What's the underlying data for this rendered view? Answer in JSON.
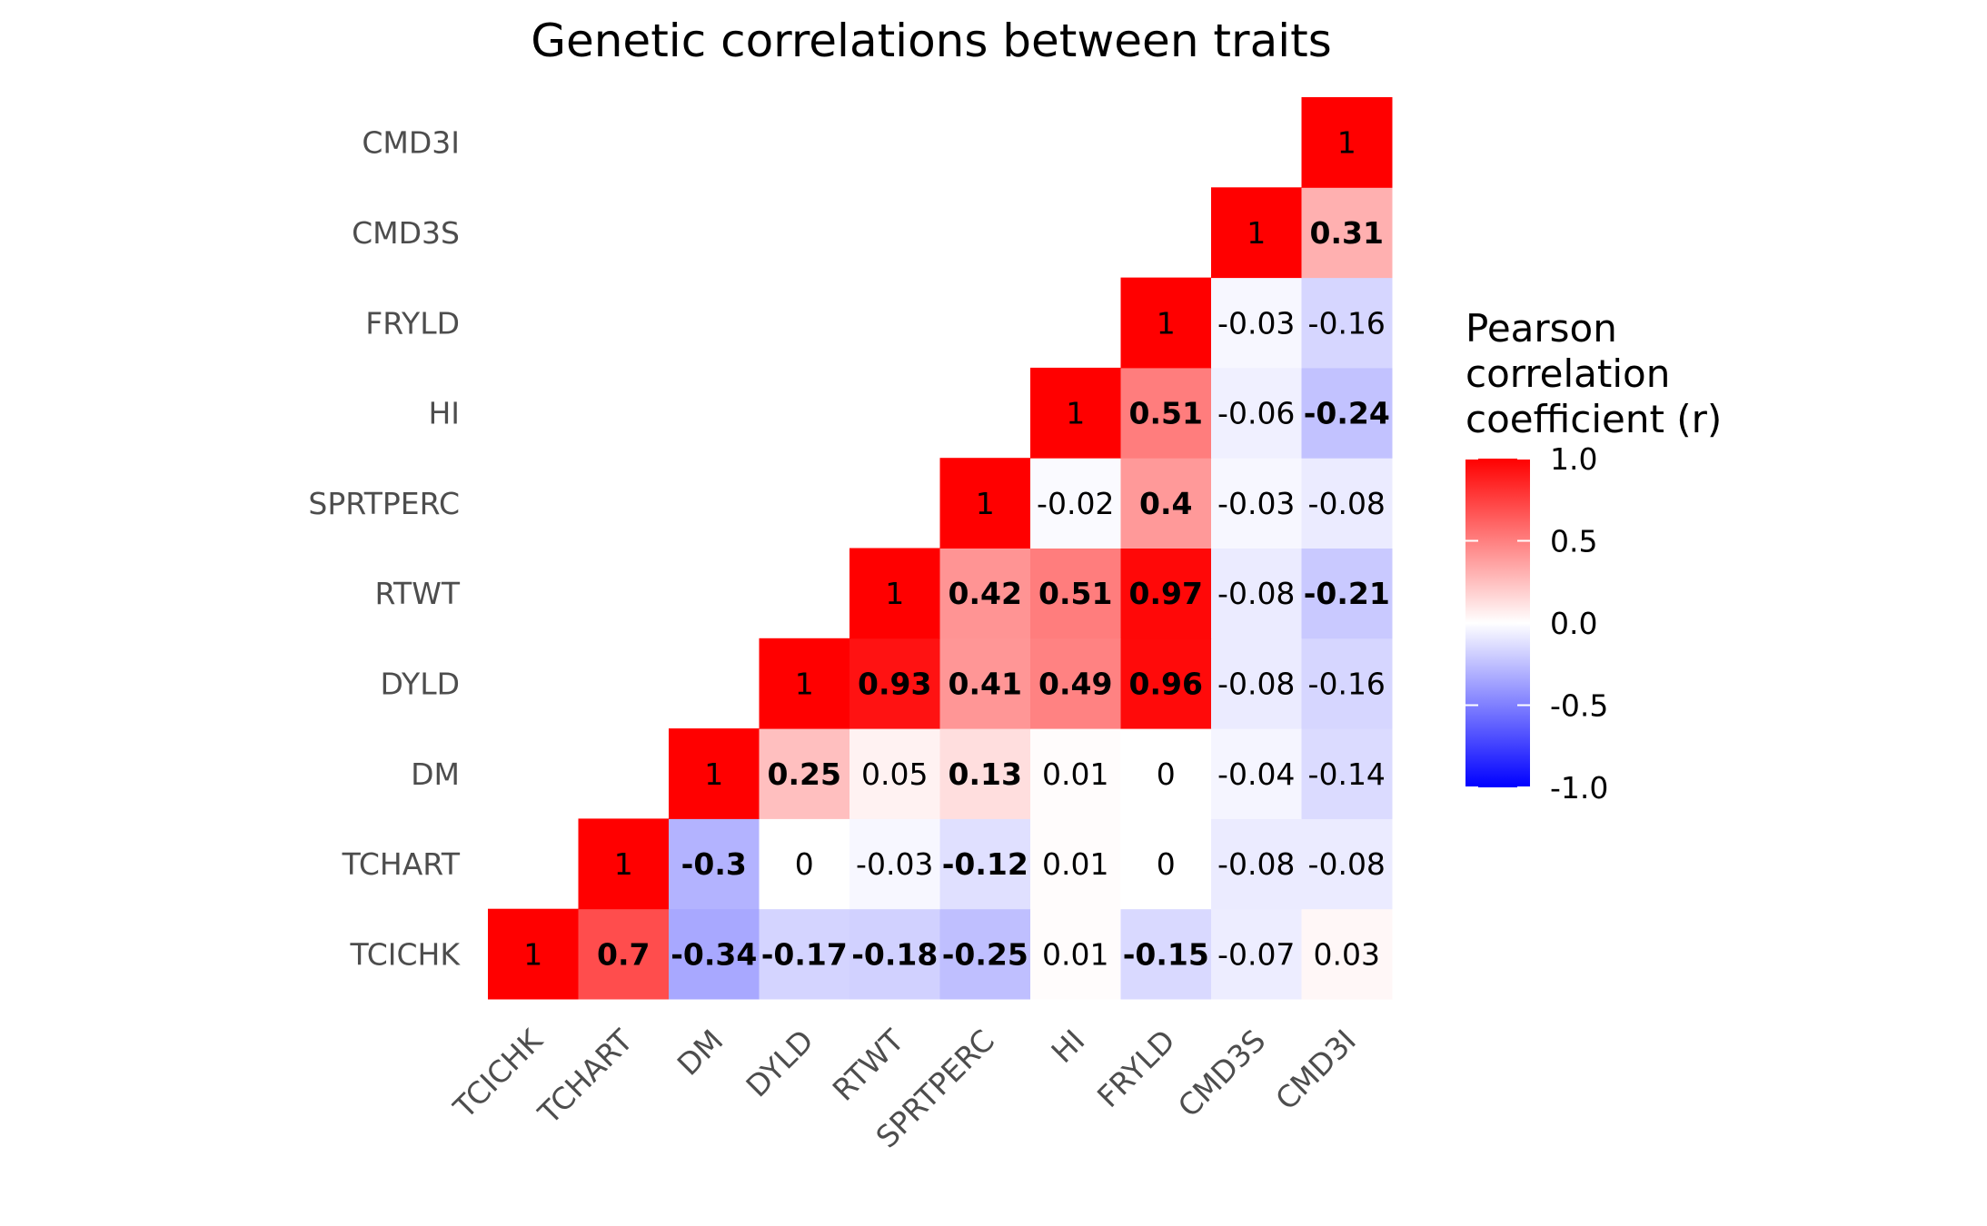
{
  "chart_data": {
    "type": "heatmap",
    "title": "Genetic correlations between traits",
    "traits": [
      "TCICHK",
      "TCHART",
      "DM",
      "DYLD",
      "RTWT",
      "SPRTPERC",
      "HI",
      "FRYLD",
      "CMD3S",
      "CMD3I"
    ],
    "cells": [
      {
        "x": "TCICHK",
        "y": "TCICHK",
        "value": 1,
        "label": "1",
        "bold": false
      },
      {
        "x": "TCHART",
        "y": "TCICHK",
        "value": 0.7,
        "label": "0.7",
        "bold": true
      },
      {
        "x": "DM",
        "y": "TCICHK",
        "value": -0.34,
        "label": "-0.34",
        "bold": true
      },
      {
        "x": "DYLD",
        "y": "TCICHK",
        "value": -0.17,
        "label": "-0.17",
        "bold": true
      },
      {
        "x": "RTWT",
        "y": "TCICHK",
        "value": -0.18,
        "label": "-0.18",
        "bold": true
      },
      {
        "x": "SPRTPERC",
        "y": "TCICHK",
        "value": -0.25,
        "label": "-0.25",
        "bold": true
      },
      {
        "x": "HI",
        "y": "TCICHK",
        "value": 0.01,
        "label": "0.01",
        "bold": false
      },
      {
        "x": "FRYLD",
        "y": "TCICHK",
        "value": -0.15,
        "label": "-0.15",
        "bold": true
      },
      {
        "x": "CMD3S",
        "y": "TCICHK",
        "value": -0.07,
        "label": "-0.07",
        "bold": false
      },
      {
        "x": "CMD3I",
        "y": "TCICHK",
        "value": 0.03,
        "label": "0.03",
        "bold": false
      },
      {
        "x": "TCHART",
        "y": "TCHART",
        "value": 1,
        "label": "1",
        "bold": false
      },
      {
        "x": "DM",
        "y": "TCHART",
        "value": -0.3,
        "label": "-0.3",
        "bold": true
      },
      {
        "x": "DYLD",
        "y": "TCHART",
        "value": 0,
        "label": "0",
        "bold": false
      },
      {
        "x": "RTWT",
        "y": "TCHART",
        "value": -0.03,
        "label": "-0.03",
        "bold": false
      },
      {
        "x": "SPRTPERC",
        "y": "TCHART",
        "value": -0.12,
        "label": "-0.12",
        "bold": true
      },
      {
        "x": "HI",
        "y": "TCHART",
        "value": 0.01,
        "label": "0.01",
        "bold": false
      },
      {
        "x": "FRYLD",
        "y": "TCHART",
        "value": 0,
        "label": "0",
        "bold": false
      },
      {
        "x": "CMD3S",
        "y": "TCHART",
        "value": -0.08,
        "label": "-0.08",
        "bold": false
      },
      {
        "x": "CMD3I",
        "y": "TCHART",
        "value": -0.08,
        "label": "-0.08",
        "bold": false
      },
      {
        "x": "DM",
        "y": "DM",
        "value": 1,
        "label": "1",
        "bold": false
      },
      {
        "x": "DYLD",
        "y": "DM",
        "value": 0.25,
        "label": "0.25",
        "bold": true
      },
      {
        "x": "RTWT",
        "y": "DM",
        "value": 0.05,
        "label": "0.05",
        "bold": false
      },
      {
        "x": "SPRTPERC",
        "y": "DM",
        "value": 0.13,
        "label": "0.13",
        "bold": true
      },
      {
        "x": "HI",
        "y": "DM",
        "value": 0.01,
        "label": "0.01",
        "bold": false
      },
      {
        "x": "FRYLD",
        "y": "DM",
        "value": 0,
        "label": "0",
        "bold": false
      },
      {
        "x": "CMD3S",
        "y": "DM",
        "value": -0.04,
        "label": "-0.04",
        "bold": false
      },
      {
        "x": "CMD3I",
        "y": "DM",
        "value": -0.14,
        "label": "-0.14",
        "bold": false
      },
      {
        "x": "DYLD",
        "y": "DYLD",
        "value": 1,
        "label": "1",
        "bold": false
      },
      {
        "x": "RTWT",
        "y": "DYLD",
        "value": 0.93,
        "label": "0.93",
        "bold": true
      },
      {
        "x": "SPRTPERC",
        "y": "DYLD",
        "value": 0.41,
        "label": "0.41",
        "bold": true
      },
      {
        "x": "HI",
        "y": "DYLD",
        "value": 0.49,
        "label": "0.49",
        "bold": true
      },
      {
        "x": "FRYLD",
        "y": "DYLD",
        "value": 0.96,
        "label": "0.96",
        "bold": true
      },
      {
        "x": "CMD3S",
        "y": "DYLD",
        "value": -0.08,
        "label": "-0.08",
        "bold": false
      },
      {
        "x": "CMD3I",
        "y": "DYLD",
        "value": -0.16,
        "label": "-0.16",
        "bold": false
      },
      {
        "x": "RTWT",
        "y": "RTWT",
        "value": 1,
        "label": "1",
        "bold": false
      },
      {
        "x": "SPRTPERC",
        "y": "RTWT",
        "value": 0.42,
        "label": "0.42",
        "bold": true
      },
      {
        "x": "HI",
        "y": "RTWT",
        "value": 0.51,
        "label": "0.51",
        "bold": true
      },
      {
        "x": "FRYLD",
        "y": "RTWT",
        "value": 0.97,
        "label": "0.97",
        "bold": true
      },
      {
        "x": "CMD3S",
        "y": "RTWT",
        "value": -0.08,
        "label": "-0.08",
        "bold": false
      },
      {
        "x": "CMD3I",
        "y": "RTWT",
        "value": -0.21,
        "label": "-0.21",
        "bold": true
      },
      {
        "x": "SPRTPERC",
        "y": "SPRTPERC",
        "value": 1,
        "label": "1",
        "bold": false
      },
      {
        "x": "HI",
        "y": "SPRTPERC",
        "value": -0.02,
        "label": "-0.02",
        "bold": false
      },
      {
        "x": "FRYLD",
        "y": "SPRTPERC",
        "value": 0.4,
        "label": "0.4",
        "bold": true
      },
      {
        "x": "CMD3S",
        "y": "SPRTPERC",
        "value": -0.03,
        "label": "-0.03",
        "bold": false
      },
      {
        "x": "CMD3I",
        "y": "SPRTPERC",
        "value": -0.08,
        "label": "-0.08",
        "bold": false
      },
      {
        "x": "HI",
        "y": "HI",
        "value": 1,
        "label": "1",
        "bold": false
      },
      {
        "x": "FRYLD",
        "y": "HI",
        "value": 0.51,
        "label": "0.51",
        "bold": true
      },
      {
        "x": "CMD3S",
        "y": "HI",
        "value": -0.06,
        "label": "-0.06",
        "bold": false
      },
      {
        "x": "CMD3I",
        "y": "HI",
        "value": -0.24,
        "label": "-0.24",
        "bold": true
      },
      {
        "x": "FRYLD",
        "y": "FRYLD",
        "value": 1,
        "label": "1",
        "bold": false
      },
      {
        "x": "CMD3S",
        "y": "FRYLD",
        "value": -0.03,
        "label": "-0.03",
        "bold": false
      },
      {
        "x": "CMD3I",
        "y": "FRYLD",
        "value": -0.16,
        "label": "-0.16",
        "bold": false
      },
      {
        "x": "CMD3S",
        "y": "CMD3S",
        "value": 1,
        "label": "1",
        "bold": false
      },
      {
        "x": "CMD3I",
        "y": "CMD3S",
        "value": 0.31,
        "label": "0.31",
        "bold": true
      },
      {
        "x": "CMD3I",
        "y": "CMD3I",
        "value": 1,
        "label": "1",
        "bold": false
      }
    ],
    "legend": {
      "title_lines": [
        "Pearson",
        "correlation",
        "coefficient (r)"
      ],
      "ticks": [
        {
          "value": 1.0,
          "label": "1.0"
        },
        {
          "value": 0.5,
          "label": "0.5"
        },
        {
          "value": 0.0,
          "label": "0.0"
        },
        {
          "value": -0.5,
          "label": "-0.5"
        },
        {
          "value": -1.0,
          "label": "-1.0"
        }
      ],
      "range": [
        -1,
        1
      ],
      "low_color": "#0000ff",
      "mid_color": "#ffffff",
      "high_color": "#ff0000"
    }
  }
}
